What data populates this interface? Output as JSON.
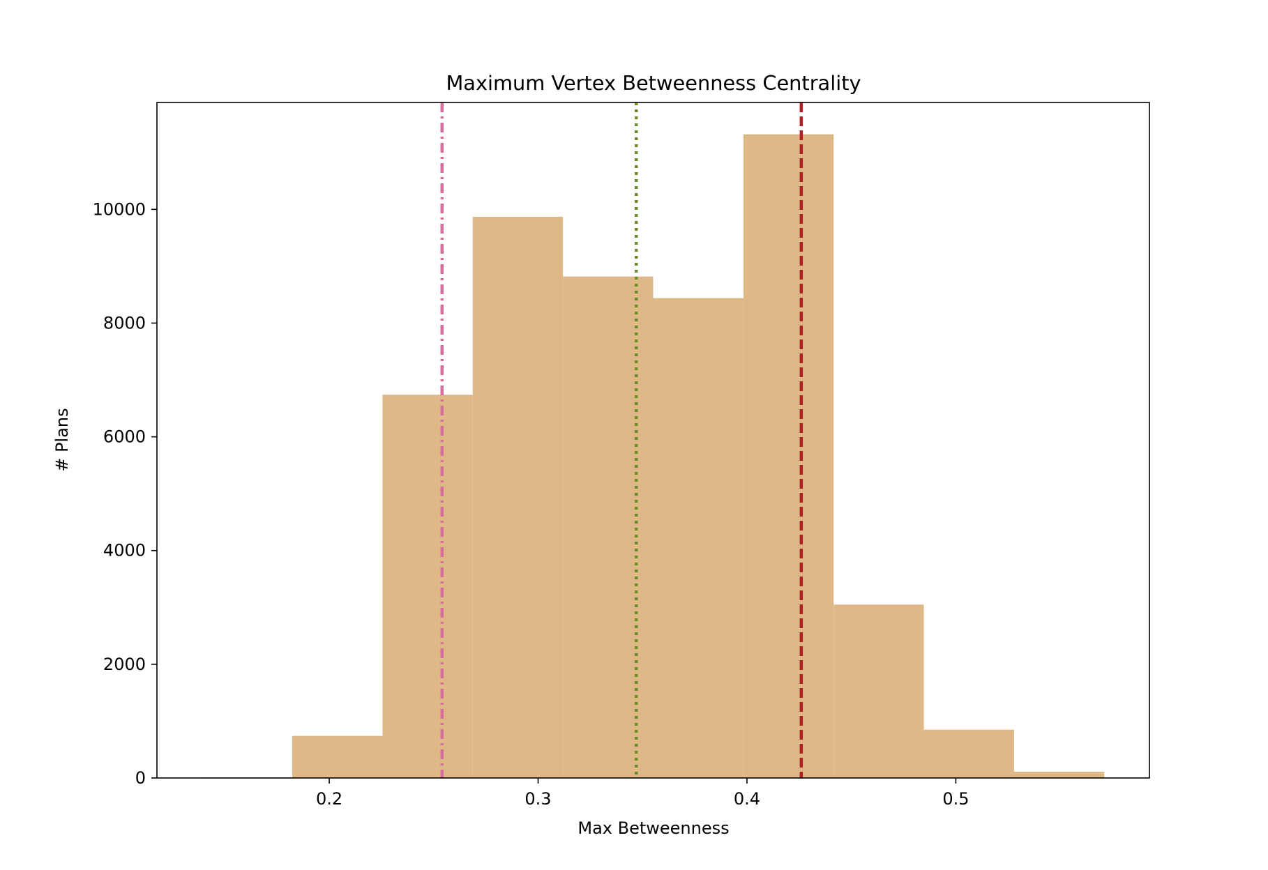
{
  "chart_data": {
    "type": "bar",
    "title": "Maximum Vertex Betweenness Centrality",
    "xlabel": "Max Betweenness",
    "ylabel": "# Plans",
    "bin_edges": [
      0.1391,
      0.1823,
      0.2255,
      0.2687,
      0.3119,
      0.3551,
      0.3983,
      0.4415,
      0.4847,
      0.5279,
      0.5711
    ],
    "values": [
      10,
      740,
      6740,
      9870,
      8820,
      8440,
      11320,
      3050,
      850,
      110
    ],
    "xlim": [
      0.1175,
      0.5927
    ],
    "ylim": [
      0,
      11880
    ],
    "xticks": [
      0.2,
      0.3,
      0.4,
      0.5
    ],
    "xtick_labels": [
      "0.2",
      "0.3",
      "0.4",
      "0.5"
    ],
    "yticks": [
      0,
      2000,
      4000,
      6000,
      8000,
      10000
    ],
    "ytick_labels": [
      "0",
      "2000",
      "4000",
      "6000",
      "8000",
      "10000"
    ],
    "grid": false,
    "bar_color": "#deb887",
    "reference_lines": [
      {
        "x": 0.254,
        "color": "#d6709a",
        "style": "dash-dot"
      },
      {
        "x": 0.347,
        "color": "#6b8e23",
        "style": "dotted"
      },
      {
        "x": 0.426,
        "color": "#b22222",
        "style": "dashed"
      }
    ]
  }
}
